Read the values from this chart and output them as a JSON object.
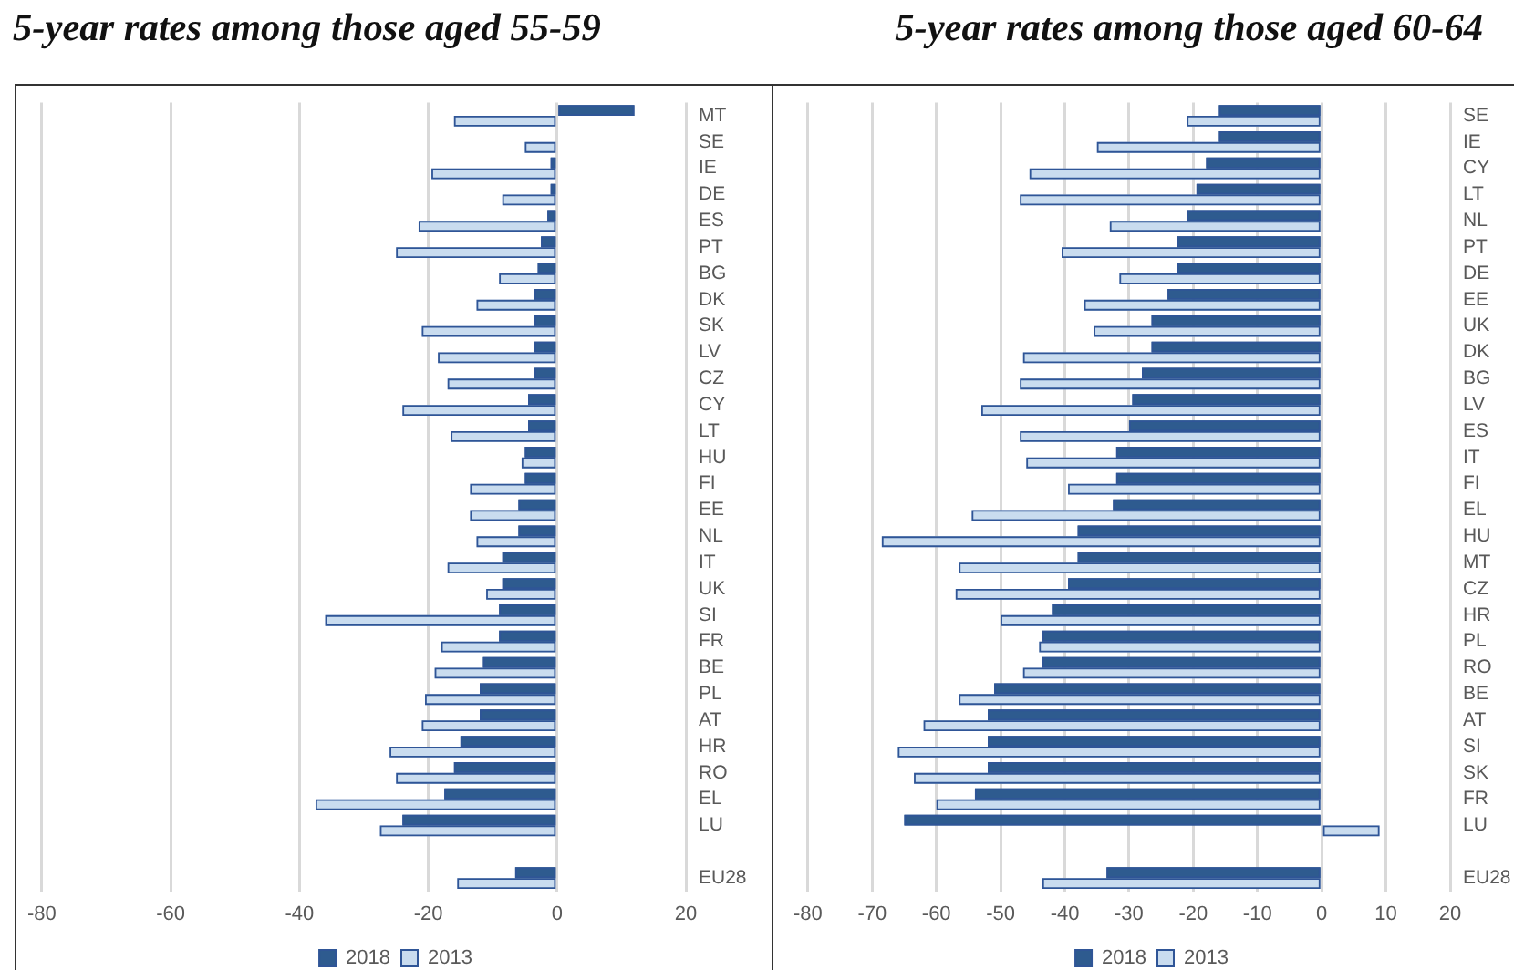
{
  "chart_data": [
    {
      "type": "bar",
      "orientation": "horizontal",
      "title": "5-year rates among those aged 55-59",
      "categories": [
        "MT",
        "SE",
        "IE",
        "DE",
        "ES",
        "PT",
        "BG",
        "DK",
        "SK",
        "LV",
        "CZ",
        "CY",
        "LT",
        "HU",
        "FI",
        "EE",
        "NL",
        "IT",
        "UK",
        "SI",
        "FR",
        "BE",
        "PL",
        "AT",
        "HR",
        "RO",
        "EL",
        "LU",
        null,
        "EU28"
      ],
      "series": [
        {
          "name": "2018",
          "color": "#2e5b8f",
          "values": [
            12,
            0,
            -1,
            -1,
            -1.5,
            -2.5,
            -3,
            -3.5,
            -3.5,
            -3.5,
            -3.5,
            -4.5,
            -4.5,
            -5,
            -5,
            -6,
            -6,
            -8.5,
            -8.5,
            -9,
            -9,
            -11.5,
            -12,
            -12,
            -15,
            -16,
            -17.5,
            -24,
            null,
            -6.5
          ]
        },
        {
          "name": "2013",
          "color": "#c9dcef",
          "values": [
            -16,
            -5,
            -19.5,
            -8.5,
            -21.5,
            -25,
            -9,
            -12.5,
            -21,
            -18.5,
            -17,
            -24,
            -16.5,
            -5.5,
            -13.5,
            -13.5,
            -12.5,
            -17,
            -11,
            -36,
            -18,
            -19,
            -20.5,
            -21,
            -26,
            -25,
            -37.5,
            -27.5,
            null,
            -15.5
          ]
        }
      ],
      "xlim": [
        -80,
        20
      ],
      "xticks": [
        -80,
        -60,
        -40,
        -20,
        0,
        20
      ],
      "grid": "x",
      "legend": "bottom"
    },
    {
      "type": "bar",
      "orientation": "horizontal",
      "title": "5-year rates among those aged 60-64",
      "categories": [
        "SE",
        "IE",
        "CY",
        "LT",
        "NL",
        "PT",
        "DE",
        "EE",
        "UK",
        "DK",
        "BG",
        "LV",
        "ES",
        "IT",
        "FI",
        "EL",
        "HU",
        "MT",
        "CZ",
        "HR",
        "PL",
        "RO",
        "BE",
        "AT",
        "SI",
        "SK",
        "FR",
        "LU",
        null,
        "EU28"
      ],
      "series": [
        {
          "name": "2018",
          "color": "#2e5b8f",
          "values": [
            -16,
            -16,
            -18,
            -19.5,
            -21,
            -22.5,
            -22.5,
            -24,
            -26.5,
            -26.5,
            -28,
            -29.5,
            -30,
            -32,
            -32,
            -32.5,
            -38,
            -38,
            -39.5,
            -42,
            -43.5,
            -43.5,
            -51,
            -52,
            -52,
            -52,
            -54,
            -65,
            null,
            -33.5
          ]
        },
        {
          "name": "2013",
          "color": "#c9dcef",
          "values": [
            -21,
            -35,
            -45.5,
            -47,
            -33,
            -40.5,
            -31.5,
            -37,
            -35.5,
            -46.5,
            -47,
            -53,
            -47,
            -46,
            -39.5,
            -54.5,
            -68.5,
            -56.5,
            -57,
            -50,
            -44,
            -46.5,
            -56.5,
            -62,
            -66,
            -63.5,
            -60,
            9,
            null,
            -43.5
          ]
        }
      ],
      "xlim": [
        -80,
        20
      ],
      "xticks": [
        -80,
        -70,
        -60,
        -50,
        -40,
        -30,
        -20,
        -10,
        0,
        10,
        20
      ],
      "grid": "x",
      "legend": "bottom"
    }
  ]
}
